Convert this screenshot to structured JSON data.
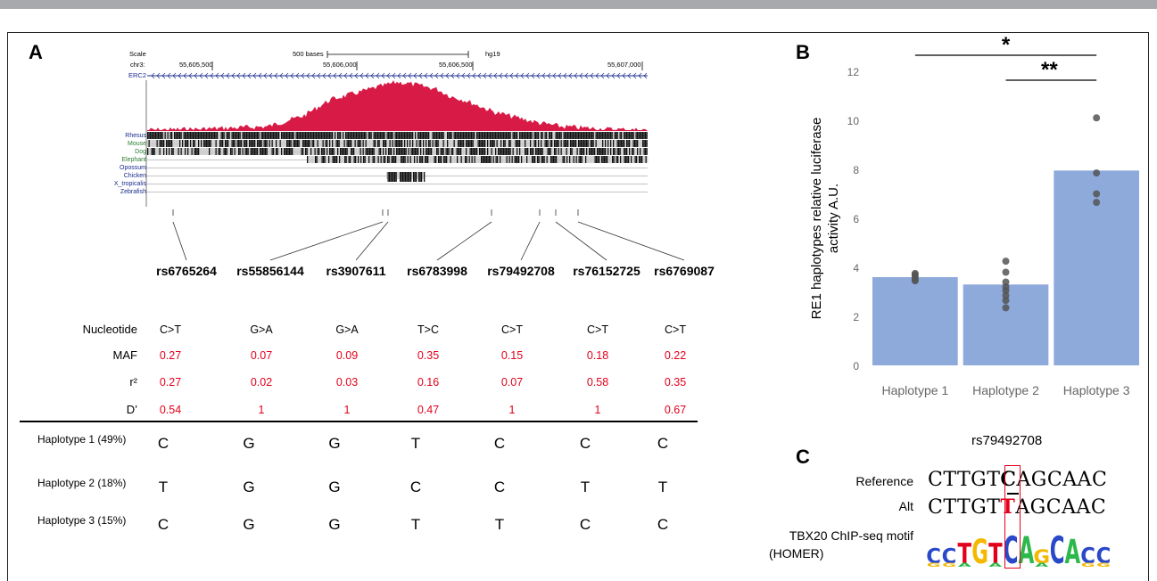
{
  "panels": {
    "a": "A",
    "b": "B",
    "c": "C"
  },
  "browser": {
    "scale_label": "Scale",
    "scale_bar": "500 bases",
    "genome": "hg19",
    "chrom": "chr3:",
    "positions": [
      "55,605,500",
      "55,606,000",
      "55,606,500",
      "55,607,000"
    ],
    "gene": "ERC2",
    "tracks": [
      "Rhesus",
      "Mouse",
      "Dog",
      "Elephant",
      "Opossum",
      "Chicken",
      "X_tropicalis",
      "Zebrafish"
    ]
  },
  "snps": [
    "rs6765264",
    "rs55856144",
    "rs3907611",
    "rs6783998",
    "rs79492708",
    "rs76152725",
    "rs6769087"
  ],
  "table": {
    "rows": [
      {
        "label": "Nucleotide",
        "values": [
          "C>T",
          "G>A",
          "G>A",
          "T>C",
          "C>T",
          "C>T",
          "C>T"
        ]
      },
      {
        "label": "MAF",
        "values": [
          "0.27",
          "0.07",
          "0.09",
          "0.35",
          "0.15",
          "0.18",
          "0.22"
        ]
      },
      {
        "label": "r²",
        "values": [
          "0.27",
          "0.02",
          "0.03",
          "0.16",
          "0.07",
          "0.58",
          "0.35"
        ]
      },
      {
        "label": "D’",
        "values": [
          "0.54",
          "1",
          "1",
          "0.47",
          "1",
          "1",
          "0.67"
        ]
      }
    ],
    "haplotypes": [
      {
        "label": "Haplotype 1 (49%)",
        "alleles": [
          "C",
          "G",
          "G",
          "T",
          "C",
          "C",
          "C"
        ]
      },
      {
        "label": "Haplotype 2 (18%)",
        "alleles": [
          "T",
          "G",
          "G",
          "C",
          "C",
          "T",
          "T"
        ]
      },
      {
        "label": "Haplotype 3 (15%)",
        "alleles": [
          "C",
          "G",
          "G",
          "T",
          "T",
          "C",
          "C"
        ]
      }
    ]
  },
  "chart_data": {
    "type": "bar",
    "categories": [
      "Haplotype 1",
      "Haplotype 2",
      "Haplotype 3"
    ],
    "values": [
      3.6,
      3.3,
      7.95
    ],
    "points": [
      [
        3.45,
        3.5,
        3.6,
        3.7,
        3.75
      ],
      [
        2.35,
        2.65,
        2.85,
        3.05,
        3.2,
        3.4,
        3.8,
        4.25
      ],
      [
        6.65,
        7.0,
        7.85,
        10.1
      ]
    ],
    "ylabel": "RE1 haplotypes relative luciferase activity A.U.",
    "ylim": [
      0,
      12
    ],
    "yticks": [
      0,
      2,
      4,
      6,
      8,
      10,
      12
    ],
    "bar_color": "#8eaadb",
    "point_color": "#555555",
    "significance": [
      {
        "from": "Haplotype 1",
        "to": "Haplotype 3",
        "label": "*"
      },
      {
        "from": "Haplotype 2",
        "to": "Haplotype 3",
        "label": "**"
      }
    ]
  },
  "motif": {
    "title": "rs79492708",
    "reference_label": "Reference",
    "reference_seq": "CTTGTCAGCAAC",
    "alt_label": "Alt",
    "alt_seq": "CTTGTTAGCAAC",
    "chip_label_line1": "TBX20 ChIP-seq motif",
    "chip_label_line2": "(HOMER)",
    "logo": [
      "C",
      "C",
      "T",
      "G",
      "T",
      "C",
      "A",
      "G",
      "C",
      "A",
      "C",
      "C"
    ],
    "colors": {
      "A": "#2db84b",
      "C": "#2a49c9",
      "G": "#f5b800",
      "T": "#e3001b"
    }
  }
}
